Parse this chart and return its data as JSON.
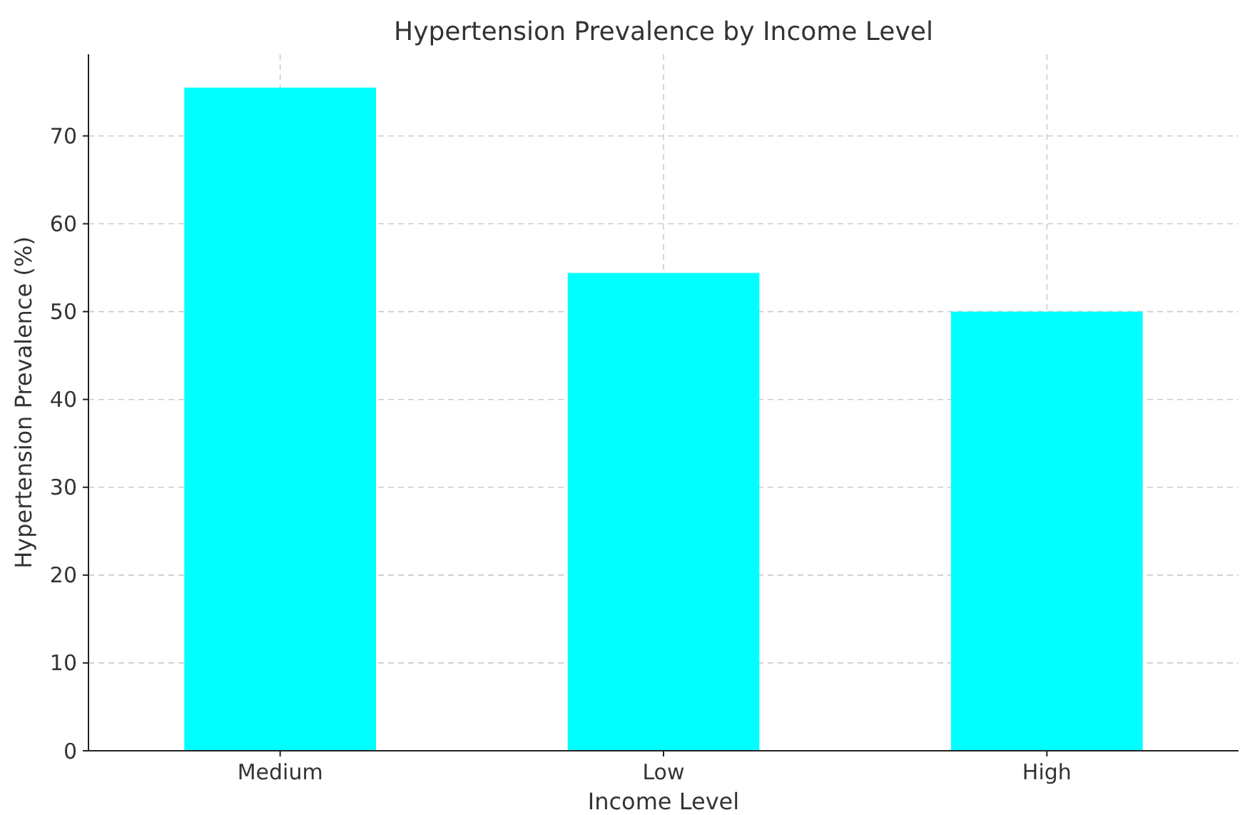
{
  "chart_data": {
    "type": "bar",
    "title": "Hypertension Prevalence by Income Level",
    "xlabel": "Income Level",
    "ylabel": "Hypertension Prevalence (%)",
    "categories": [
      "Medium",
      "Low",
      "High"
    ],
    "values": [
      75.5,
      54.4,
      50.0
    ],
    "color": "#00ffff",
    "ylim": [
      0,
      79.3
    ],
    "yticks": [
      0,
      10,
      20,
      30,
      40,
      50,
      60,
      70
    ],
    "grid": true
  }
}
